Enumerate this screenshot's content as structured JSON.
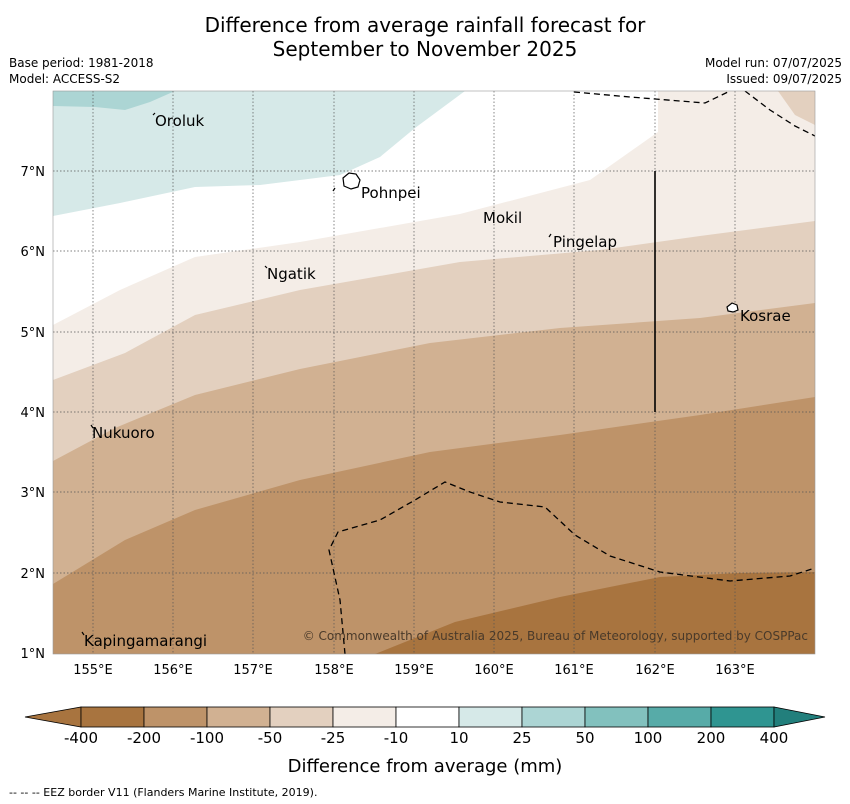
{
  "title_line1": "Difference from average rainfall forecast for",
  "title_line2": "September to November 2025",
  "meta_left": {
    "base_period": "Base period: 1981-2018",
    "model": "Model: ACCESS-S2"
  },
  "meta_right": {
    "model_run": "Model run: 07/07/2025",
    "issued": "Issued: 09/07/2025"
  },
  "map": {
    "lon_ticks": [
      "155°E",
      "156°E",
      "157°E",
      "158°E",
      "159°E",
      "160°E",
      "161°E",
      "162°E",
      "163°E"
    ],
    "lat_ticks": [
      "7°N",
      "6°N",
      "5°N",
      "4°N",
      "3°N",
      "2°N",
      "1°N"
    ],
    "places": {
      "oroluk": "Oroluk",
      "pohnpei": "Pohnpei",
      "mokil": "Mokil",
      "pingelap": "Pingelap",
      "ngatik": "Ngatik",
      "kosrae": "Kosrae",
      "nukuoro": "Nukuoro",
      "kapingamarangi": "Kapingamarangi"
    },
    "copyright": "© Commonwealth of Australia 2025, Bureau of Meteorology, supported by COSPPac"
  },
  "colorbar": {
    "ticks": [
      "-400",
      "-200",
      "-100",
      "-50",
      "-25",
      "-10",
      "10",
      "25",
      "50",
      "100",
      "200",
      "400"
    ],
    "colors": [
      "#a8743f",
      "#be9369",
      "#d1b192",
      "#e3d0bf",
      "#f4ede7",
      "#ffffff",
      "#d6e9e8",
      "#acd5d4",
      "#82c1be",
      "#57aba8",
      "#2f9591",
      "#227f7c"
    ],
    "title": "Difference from average (mm)"
  },
  "footnote": "--  --  -- EEZ border V11 (Flanders Marine Institute, 2019)."
}
